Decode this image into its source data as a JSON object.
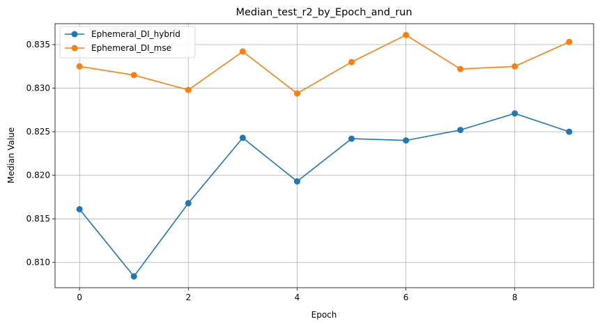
{
  "chart_data": {
    "type": "line",
    "title": "Median_test_r2_by_Epoch_and_run",
    "xlabel": "Epoch",
    "ylabel": "Median Value",
    "x": [
      0,
      1,
      2,
      3,
      4,
      5,
      6,
      7,
      8,
      9
    ],
    "xlim": [
      -0.45,
      9.45
    ],
    "ylim": [
      0.8071,
      0.8374
    ],
    "xticks": [
      0,
      2,
      4,
      6,
      8
    ],
    "yticks": [
      0.81,
      0.815,
      0.82,
      0.825,
      0.83,
      0.835
    ],
    "xtick_labels": [
      "0",
      "2",
      "4",
      "6",
      "8"
    ],
    "ytick_labels": [
      "0.810",
      "0.815",
      "0.820",
      "0.825",
      "0.830",
      "0.835"
    ],
    "grid": true,
    "legend_position": "top-left",
    "series": [
      {
        "name": "Ephemeral_DI_hybrid",
        "color": "#1f77b4",
        "marker": "circle",
        "values": [
          0.8161,
          0.8084,
          0.8168,
          0.8243,
          0.8193,
          0.8242,
          0.824,
          0.8252,
          0.8271,
          0.825
        ]
      },
      {
        "name": "Ephemeral_DI_mse",
        "color": "#ff7f0e",
        "marker": "circle",
        "values": [
          0.8325,
          0.8315,
          0.8298,
          0.8342,
          0.8294,
          0.833,
          0.8361,
          0.8322,
          0.8325,
          0.8353
        ]
      }
    ]
  }
}
